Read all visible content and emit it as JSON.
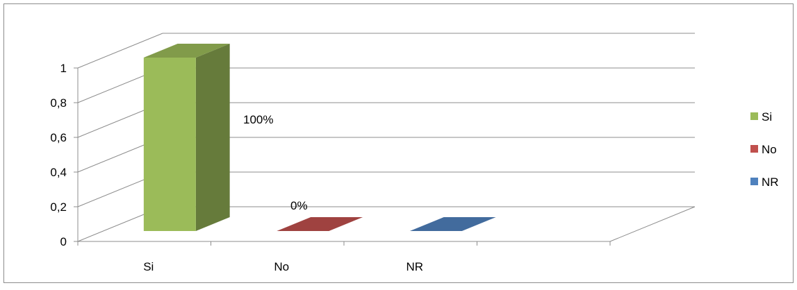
{
  "chart_data": {
    "type": "bar",
    "three_d": true,
    "categories": [
      "Si",
      "No",
      "NR"
    ],
    "series": [
      {
        "name": "Si",
        "color": "#9BBB59",
        "values": [
          1,
          0,
          0
        ]
      },
      {
        "name": "No",
        "color": "#C0504D",
        "values": [
          0,
          0,
          0
        ]
      },
      {
        "name": "NR",
        "color": "#4F81BD",
        "values": [
          0,
          0,
          0
        ]
      }
    ],
    "data_labels": [
      "100%",
      "0%"
    ],
    "y_ticks": [
      "0",
      "0,2",
      "0,4",
      "0,6",
      "0,8",
      "1"
    ],
    "ylim": [
      0,
      1
    ],
    "grid": true,
    "legend_position": "right"
  }
}
